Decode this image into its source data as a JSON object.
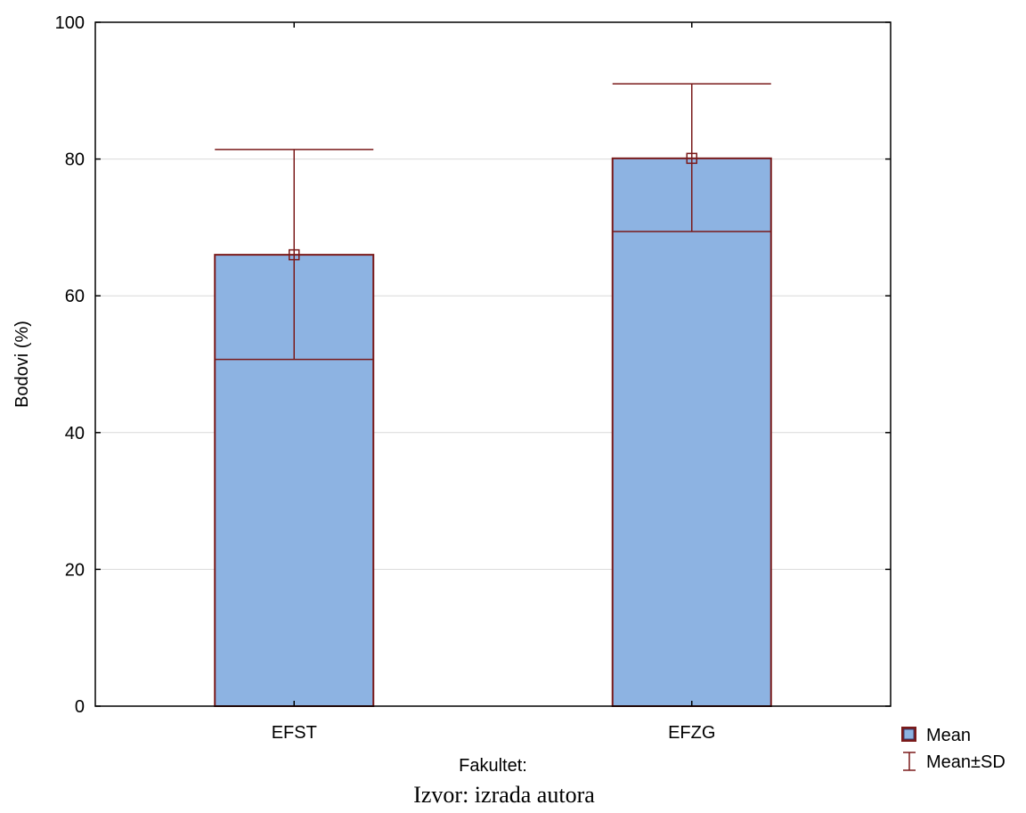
{
  "chart_data": {
    "type": "bar",
    "categories": [
      "EFST",
      "EFZG"
    ],
    "series": [
      {
        "name": "Mean",
        "values": [
          66.0,
          80.1
        ],
        "sd_lower": [
          50.7,
          69.4
        ],
        "sd_upper": [
          81.4,
          91.0
        ]
      }
    ],
    "error_bar_label": "Mean±SD",
    "xlabel": "Fakultet:",
    "ylabel": "Bodovi (%)",
    "ylim": [
      0,
      100
    ],
    "yticks": [
      0,
      20,
      40,
      60,
      80,
      100
    ],
    "grid": true,
    "legend_position": "bottom-right",
    "colors": {
      "bar_fill": "#8db3e2",
      "bar_edge": "#7a1a1a",
      "grid": "#d9d9d9",
      "axis": "#000000"
    }
  },
  "source_note": "Izvor: izrada autora"
}
